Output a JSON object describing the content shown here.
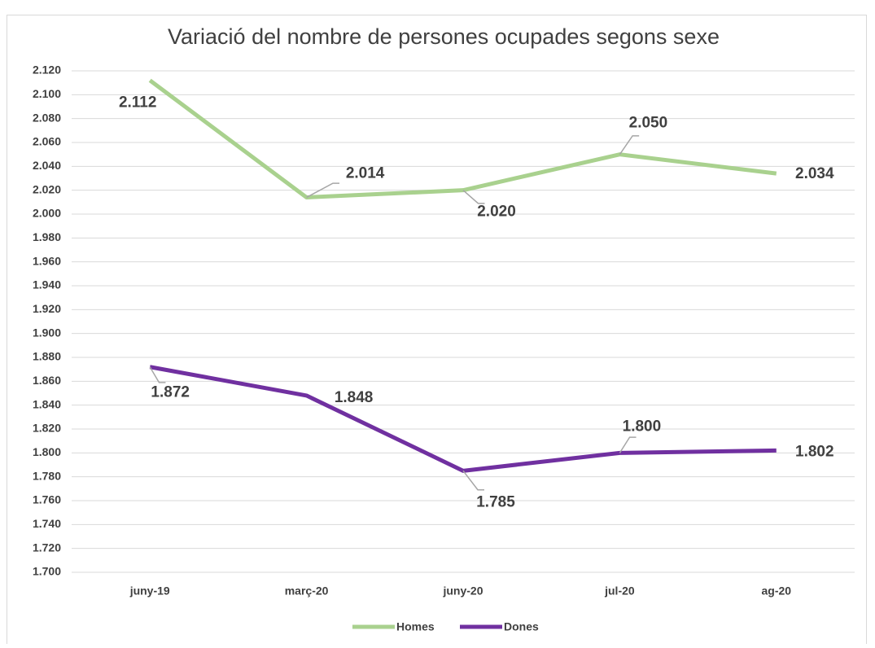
{
  "chart_data": {
    "type": "line",
    "title": "Variació  del nombre de persones ocupades segons sexe",
    "categories": [
      "juny-19",
      "març-20",
      "juny-20",
      "jul-20",
      "ag-20"
    ],
    "series": [
      {
        "name": "Homes",
        "color": "#a9d18e",
        "values": [
          2112,
          2014,
          2020,
          2050,
          2034
        ],
        "value_labels": [
          "2.112",
          "2.014",
          "2.020",
          "2.050",
          "2.034"
        ]
      },
      {
        "name": "Dones",
        "color": "#7030a0",
        "values": [
          1872,
          1848,
          1785,
          1800,
          1802
        ],
        "value_labels": [
          "1.872",
          "1.848",
          "1.785",
          "1.800",
          "1.802"
        ]
      }
    ],
    "ylim": [
      1700,
      2120
    ],
    "yticks": [
      {
        "value": 1700,
        "label": "1.700"
      },
      {
        "value": 1720,
        "label": "1.720"
      },
      {
        "value": 1740,
        "label": "1.740"
      },
      {
        "value": 1760,
        "label": "1.760"
      },
      {
        "value": 1780,
        "label": "1.780"
      },
      {
        "value": 1800,
        "label": "1.800"
      },
      {
        "value": 1820,
        "label": "1.820"
      },
      {
        "value": 1840,
        "label": "1.840"
      },
      {
        "value": 1860,
        "label": "1.860"
      },
      {
        "value": 1880,
        "label": "1.880"
      },
      {
        "value": 1900,
        "label": "1.900"
      },
      {
        "value": 1920,
        "label": "1.920"
      },
      {
        "value": 1940,
        "label": "1.940"
      },
      {
        "value": 1960,
        "label": "1.960"
      },
      {
        "value": 1980,
        "label": "1.980"
      },
      {
        "value": 2000,
        "label": "2.000"
      },
      {
        "value": 2020,
        "label": "2.020"
      },
      {
        "value": 2040,
        "label": "2.040"
      },
      {
        "value": 2060,
        "label": "2.060"
      },
      {
        "value": 2080,
        "label": "2.080"
      },
      {
        "value": 2100,
        "label": "2.100"
      },
      {
        "value": 2120,
        "label": "2.120"
      }
    ],
    "grid": true,
    "legend": "bottom"
  }
}
